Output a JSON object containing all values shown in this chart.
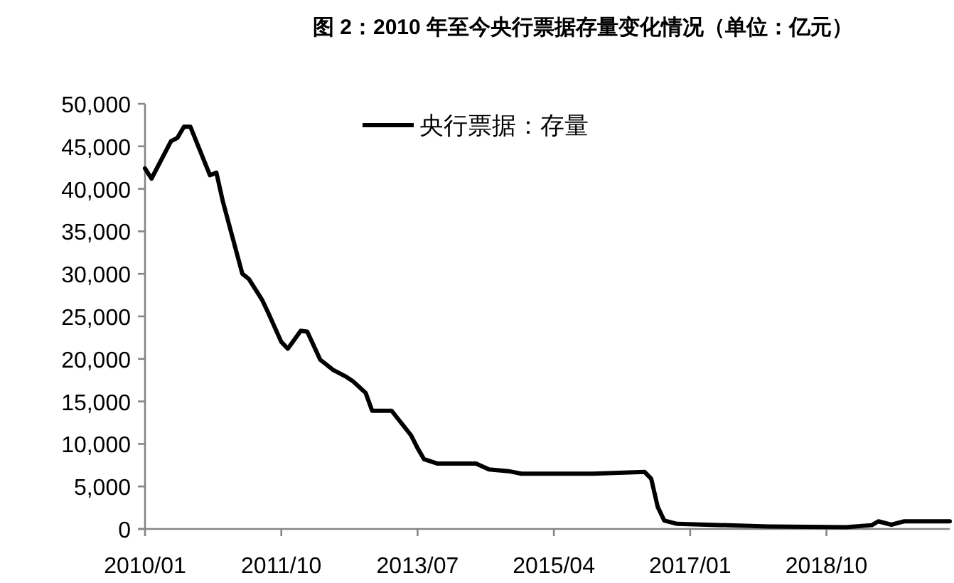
{
  "chart_data": {
    "type": "line",
    "title": "图 2：2010 年至今央行票据存量变化情况（单位：亿元）",
    "x": [
      "2010-01",
      "2010-02",
      "2010-05",
      "2010-06",
      "2010-07",
      "2010-08",
      "2010-11",
      "2010-12",
      "2011-01",
      "2011-04",
      "2011-05",
      "2011-07",
      "2011-08",
      "2011-10",
      "2011-11",
      "2012-01",
      "2012-02",
      "2012-04",
      "2012-06",
      "2012-08",
      "2012-09",
      "2012-11",
      "2012-12",
      "2013-03",
      "2013-06",
      "2013-07",
      "2013-08",
      "2013-10",
      "2014-04",
      "2014-06",
      "2014-09",
      "2014-11",
      "2015-10",
      "2016-06",
      "2016-07",
      "2016-08",
      "2016-09",
      "2016-11",
      "2018-01",
      "2019-01",
      "2019-05",
      "2019-06",
      "2019-08",
      "2019-10",
      "2020-05"
    ],
    "series": [
      {
        "name": "央行票据：存量",
        "color": "#000000",
        "values": [
          42400,
          41200,
          45600,
          46000,
          47300,
          47300,
          41600,
          41900,
          38500,
          30000,
          29400,
          27000,
          25400,
          22000,
          21200,
          23300,
          23200,
          19900,
          18700,
          17900,
          17400,
          16000,
          13900,
          13900,
          11000,
          9500,
          8200,
          7700,
          7700,
          7000,
          6800,
          6500,
          6500,
          6700,
          5900,
          2600,
          1000,
          600,
          300,
          200,
          450,
          900,
          500,
          900,
          900
        ]
      }
    ],
    "xlim": [
      "2010-01",
      "2020-05"
    ],
    "xticks": [
      {
        "value": "2010-01",
        "label": "2010/01"
      },
      {
        "value": "2011-10",
        "label": "2011/10"
      },
      {
        "value": "2013-07",
        "label": "2013/07"
      },
      {
        "value": "2015-04",
        "label": "2015/04"
      },
      {
        "value": "2017-01",
        "label": "2017/01"
      },
      {
        "value": "2018-10",
        "label": "2018/10"
      }
    ],
    "ylim": [
      0,
      50000
    ],
    "yticks": [
      0,
      {
        "value": 5000,
        "label": "5,000"
      },
      {
        "value": 10000,
        "label": "10,000"
      },
      {
        "value": 15000,
        "label": "15,000"
      },
      {
        "value": 20000,
        "label": "20,000"
      },
      {
        "value": 25000,
        "label": "25,000"
      },
      {
        "value": 30000,
        "label": "30,000"
      },
      {
        "value": 35000,
        "label": "35,000"
      },
      {
        "value": 40000,
        "label": "40,000"
      },
      {
        "value": 45000,
        "label": "45,000"
      },
      {
        "value": 50000,
        "label": "50,000"
      }
    ],
    "legend": "top",
    "grid": false,
    "marker": "none",
    "line_style": "solid"
  }
}
